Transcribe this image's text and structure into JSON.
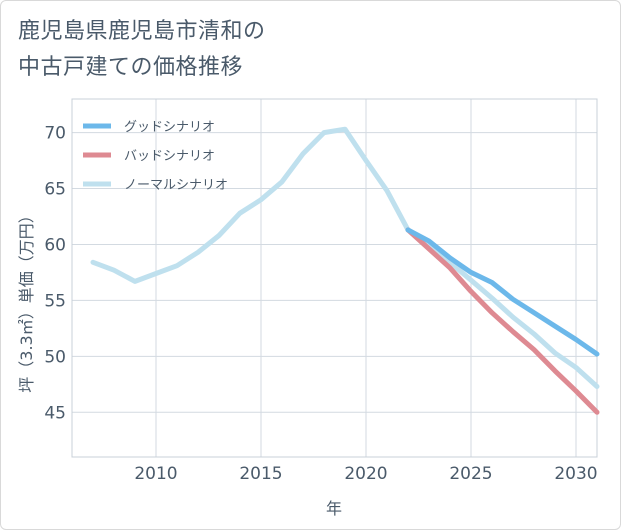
{
  "chart_data": {
    "type": "line",
    "title_lines": [
      "鹿児島県鹿児島市清和の",
      "中古戸建ての価格推移"
    ],
    "xlabel": "年",
    "ylabel": "坪（3.3㎡）単価（万円）",
    "xlim": [
      2006,
      2031
    ],
    "ylim": [
      41,
      73
    ],
    "x_ticks": [
      2010,
      2015,
      2020,
      2025,
      2030
    ],
    "y_ticks": [
      45,
      50,
      55,
      60,
      65,
      70
    ],
    "grid": true,
    "legend_position": "top-left",
    "series": [
      {
        "name": "グッドシナリオ",
        "color": "#6cb8ea",
        "x": [
          2022,
          2023,
          2024,
          2025,
          2026,
          2027,
          2028,
          2029,
          2030,
          2031
        ],
        "y": [
          61.3,
          60.3,
          58.8,
          57.5,
          56.6,
          55.1,
          53.9,
          52.7,
          51.5,
          50.2
        ]
      },
      {
        "name": "バッドシナリオ",
        "color": "#de8a92",
        "x": [
          2022,
          2023,
          2024,
          2025,
          2026,
          2027,
          2028,
          2029,
          2030,
          2031
        ],
        "y": [
          61.3,
          59.6,
          57.9,
          55.8,
          53.9,
          52.2,
          50.6,
          48.7,
          46.9,
          45.0
        ]
      },
      {
        "name": "ノーマルシナリオ",
        "color": "#bfe0ee",
        "x": [
          2007,
          2008,
          2009,
          2010,
          2011,
          2012,
          2013,
          2014,
          2015,
          2016,
          2017,
          2018,
          2019,
          2020,
          2021,
          2022,
          2023,
          2024,
          2025,
          2026,
          2027,
          2028,
          2029,
          2030,
          2031
        ],
        "y": [
          58.4,
          57.7,
          56.7,
          57.4,
          58.1,
          59.3,
          60.8,
          62.8,
          64.0,
          65.6,
          68.1,
          70.0,
          70.3,
          67.5,
          64.8,
          61.3,
          59.9,
          58.4,
          56.8,
          55.2,
          53.5,
          52.0,
          50.3,
          49.0,
          47.3
        ]
      }
    ]
  }
}
